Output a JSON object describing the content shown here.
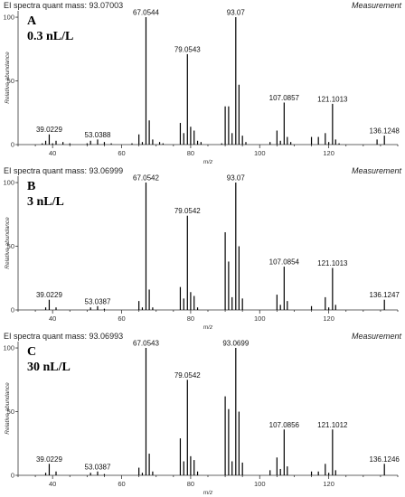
{
  "figure": {
    "header_right": "Measurement",
    "y_axis_title": "Relative abundance",
    "x_axis_title": "m/z"
  },
  "chart_data": [
    {
      "type": "bar",
      "panel": "A",
      "header_left": "EI spectra quant mass: 93.07003",
      "concentration": "0.3 nL/L",
      "xlabel": "m/z",
      "ylabel": "Relative abundance",
      "xlim": [
        30,
        140
      ],
      "ylim": [
        0,
        105
      ],
      "xticks": [
        40,
        60,
        80,
        100,
        120
      ],
      "yticks": [
        0,
        50,
        100
      ],
      "peaks": [
        {
          "x": 37.0,
          "y": 1
        },
        {
          "x": 38.0,
          "y": 3
        },
        {
          "x": 39.0229,
          "y": 8,
          "label": "39.0229"
        },
        {
          "x": 40.0,
          "y": 1
        },
        {
          "x": 41.0,
          "y": 3
        },
        {
          "x": 43.0,
          "y": 2
        },
        {
          "x": 45.0,
          "y": 1
        },
        {
          "x": 50.0,
          "y": 1
        },
        {
          "x": 51.0,
          "y": 3
        },
        {
          "x": 53.0388,
          "y": 4,
          "label": "53.0388"
        },
        {
          "x": 55.0,
          "y": 2
        },
        {
          "x": 57.0,
          "y": 1
        },
        {
          "x": 63.0,
          "y": 1
        },
        {
          "x": 65.0,
          "y": 8
        },
        {
          "x": 66.0,
          "y": 2
        },
        {
          "x": 67.0544,
          "y": 100,
          "label": "67.0544"
        },
        {
          "x": 68.0,
          "y": 19
        },
        {
          "x": 69.0,
          "y": 4
        },
        {
          "x": 71.0,
          "y": 2
        },
        {
          "x": 72.0,
          "y": 1
        },
        {
          "x": 77.0,
          "y": 17
        },
        {
          "x": 78.0,
          "y": 9
        },
        {
          "x": 79.0543,
          "y": 71,
          "label": "79.0543"
        },
        {
          "x": 80.0,
          "y": 14
        },
        {
          "x": 81.0,
          "y": 11
        },
        {
          "x": 82.0,
          "y": 3
        },
        {
          "x": 83.0,
          "y": 2
        },
        {
          "x": 89.0,
          "y": 1
        },
        {
          "x": 90.0,
          "y": 30
        },
        {
          "x": 91.0,
          "y": 30
        },
        {
          "x": 92.0,
          "y": 9
        },
        {
          "x": 93.07,
          "y": 100,
          "label": "93.07"
        },
        {
          "x": 94.0,
          "y": 47
        },
        {
          "x": 95.0,
          "y": 7
        },
        {
          "x": 96.0,
          "y": 2
        },
        {
          "x": 103.0,
          "y": 2
        },
        {
          "x": 105.0,
          "y": 11
        },
        {
          "x": 106.0,
          "y": 3
        },
        {
          "x": 107.0857,
          "y": 33,
          "label": "107.0857"
        },
        {
          "x": 108.0,
          "y": 6
        },
        {
          "x": 109.0,
          "y": 2
        },
        {
          "x": 115.0,
          "y": 6
        },
        {
          "x": 117.0,
          "y": 6
        },
        {
          "x": 119.0,
          "y": 9
        },
        {
          "x": 120.0,
          "y": 2
        },
        {
          "x": 121.1013,
          "y": 32,
          "label": "121.1013"
        },
        {
          "x": 122.0,
          "y": 4
        },
        {
          "x": 123.0,
          "y": 1
        },
        {
          "x": 134.0,
          "y": 4
        },
        {
          "x": 136.1248,
          "y": 7,
          "label": "136.1248"
        }
      ]
    },
    {
      "type": "bar",
      "panel": "B",
      "header_left": "EI spectra quant mass: 93.06999",
      "concentration": "3 nL/L",
      "xlabel": "m/z",
      "ylabel": "Relative abundance",
      "xlim": [
        30,
        140
      ],
      "ylim": [
        0,
        105
      ],
      "xticks": [
        40,
        60,
        80,
        100,
        120
      ],
      "yticks": [
        0,
        50,
        100
      ],
      "peaks": [
        {
          "x": 38.0,
          "y": 2
        },
        {
          "x": 39.0229,
          "y": 8,
          "label": "39.0229"
        },
        {
          "x": 41.0,
          "y": 2
        },
        {
          "x": 51.0,
          "y": 2
        },
        {
          "x": 53.0387,
          "y": 3,
          "label": "53.0387"
        },
        {
          "x": 55.0,
          "y": 1
        },
        {
          "x": 65.0,
          "y": 7
        },
        {
          "x": 66.0,
          "y": 2
        },
        {
          "x": 67.0542,
          "y": 100,
          "label": "67.0542"
        },
        {
          "x": 68.0,
          "y": 16
        },
        {
          "x": 69.0,
          "y": 2
        },
        {
          "x": 77.0,
          "y": 18
        },
        {
          "x": 78.0,
          "y": 9
        },
        {
          "x": 79.0542,
          "y": 74,
          "label": "79.0542"
        },
        {
          "x": 80.0,
          "y": 14
        },
        {
          "x": 81.0,
          "y": 11
        },
        {
          "x": 82.0,
          "y": 2
        },
        {
          "x": 90.0,
          "y": 61
        },
        {
          "x": 91.0,
          "y": 38
        },
        {
          "x": 92.0,
          "y": 10
        },
        {
          "x": 93.07,
          "y": 100,
          "label": "93.07"
        },
        {
          "x": 94.0,
          "y": 50
        },
        {
          "x": 95.0,
          "y": 9
        },
        {
          "x": 105.0,
          "y": 12
        },
        {
          "x": 106.0,
          "y": 4
        },
        {
          "x": 107.0854,
          "y": 34,
          "label": "107.0854"
        },
        {
          "x": 108.0,
          "y": 7
        },
        {
          "x": 115.0,
          "y": 3
        },
        {
          "x": 119.0,
          "y": 10
        },
        {
          "x": 120.0,
          "y": 2
        },
        {
          "x": 121.1013,
          "y": 33,
          "label": "121.1013"
        },
        {
          "x": 122.0,
          "y": 4
        },
        {
          "x": 136.1247,
          "y": 8,
          "label": "136.1247"
        }
      ]
    },
    {
      "type": "bar",
      "panel": "C",
      "header_left": "EI spectra quant mass: 93.06993",
      "concentration": "30 nL/L",
      "xlabel": "m/z",
      "ylabel": "Relative abundance",
      "xlim": [
        30,
        140
      ],
      "ylim": [
        0,
        105
      ],
      "xticks": [
        40,
        60,
        80,
        100,
        120
      ],
      "yticks": [
        0,
        50,
        100
      ],
      "peaks": [
        {
          "x": 38.0,
          "y": 2
        },
        {
          "x": 39.0229,
          "y": 9,
          "label": "39.0229"
        },
        {
          "x": 41.0,
          "y": 3
        },
        {
          "x": 51.0,
          "y": 2
        },
        {
          "x": 53.0387,
          "y": 3,
          "label": "53.0387"
        },
        {
          "x": 55.0,
          "y": 1
        },
        {
          "x": 65.0,
          "y": 6
        },
        {
          "x": 66.0,
          "y": 2
        },
        {
          "x": 67.0543,
          "y": 100,
          "label": "67.0543"
        },
        {
          "x": 68.0,
          "y": 17
        },
        {
          "x": 69.0,
          "y": 3
        },
        {
          "x": 77.0,
          "y": 29
        },
        {
          "x": 78.0,
          "y": 11
        },
        {
          "x": 79.0542,
          "y": 75,
          "label": "79.0542"
        },
        {
          "x": 80.0,
          "y": 15
        },
        {
          "x": 81.0,
          "y": 12
        },
        {
          "x": 82.0,
          "y": 3
        },
        {
          "x": 90.0,
          "y": 62
        },
        {
          "x": 91.0,
          "y": 52
        },
        {
          "x": 92.0,
          "y": 11
        },
        {
          "x": 93.0699,
          "y": 100,
          "label": "93.0699"
        },
        {
          "x": 94.0,
          "y": 50
        },
        {
          "x": 95.0,
          "y": 10
        },
        {
          "x": 103.0,
          "y": 4
        },
        {
          "x": 105.0,
          "y": 14
        },
        {
          "x": 106.0,
          "y": 5
        },
        {
          "x": 107.0856,
          "y": 36,
          "label": "107.0856"
        },
        {
          "x": 108.0,
          "y": 7
        },
        {
          "x": 115.0,
          "y": 3
        },
        {
          "x": 117.0,
          "y": 3
        },
        {
          "x": 119.0,
          "y": 9
        },
        {
          "x": 120.0,
          "y": 2
        },
        {
          "x": 121.1012,
          "y": 36,
          "label": "121.1012"
        },
        {
          "x": 122.0,
          "y": 4
        },
        {
          "x": 136.1246,
          "y": 9,
          "label": "136.1246"
        }
      ]
    }
  ]
}
